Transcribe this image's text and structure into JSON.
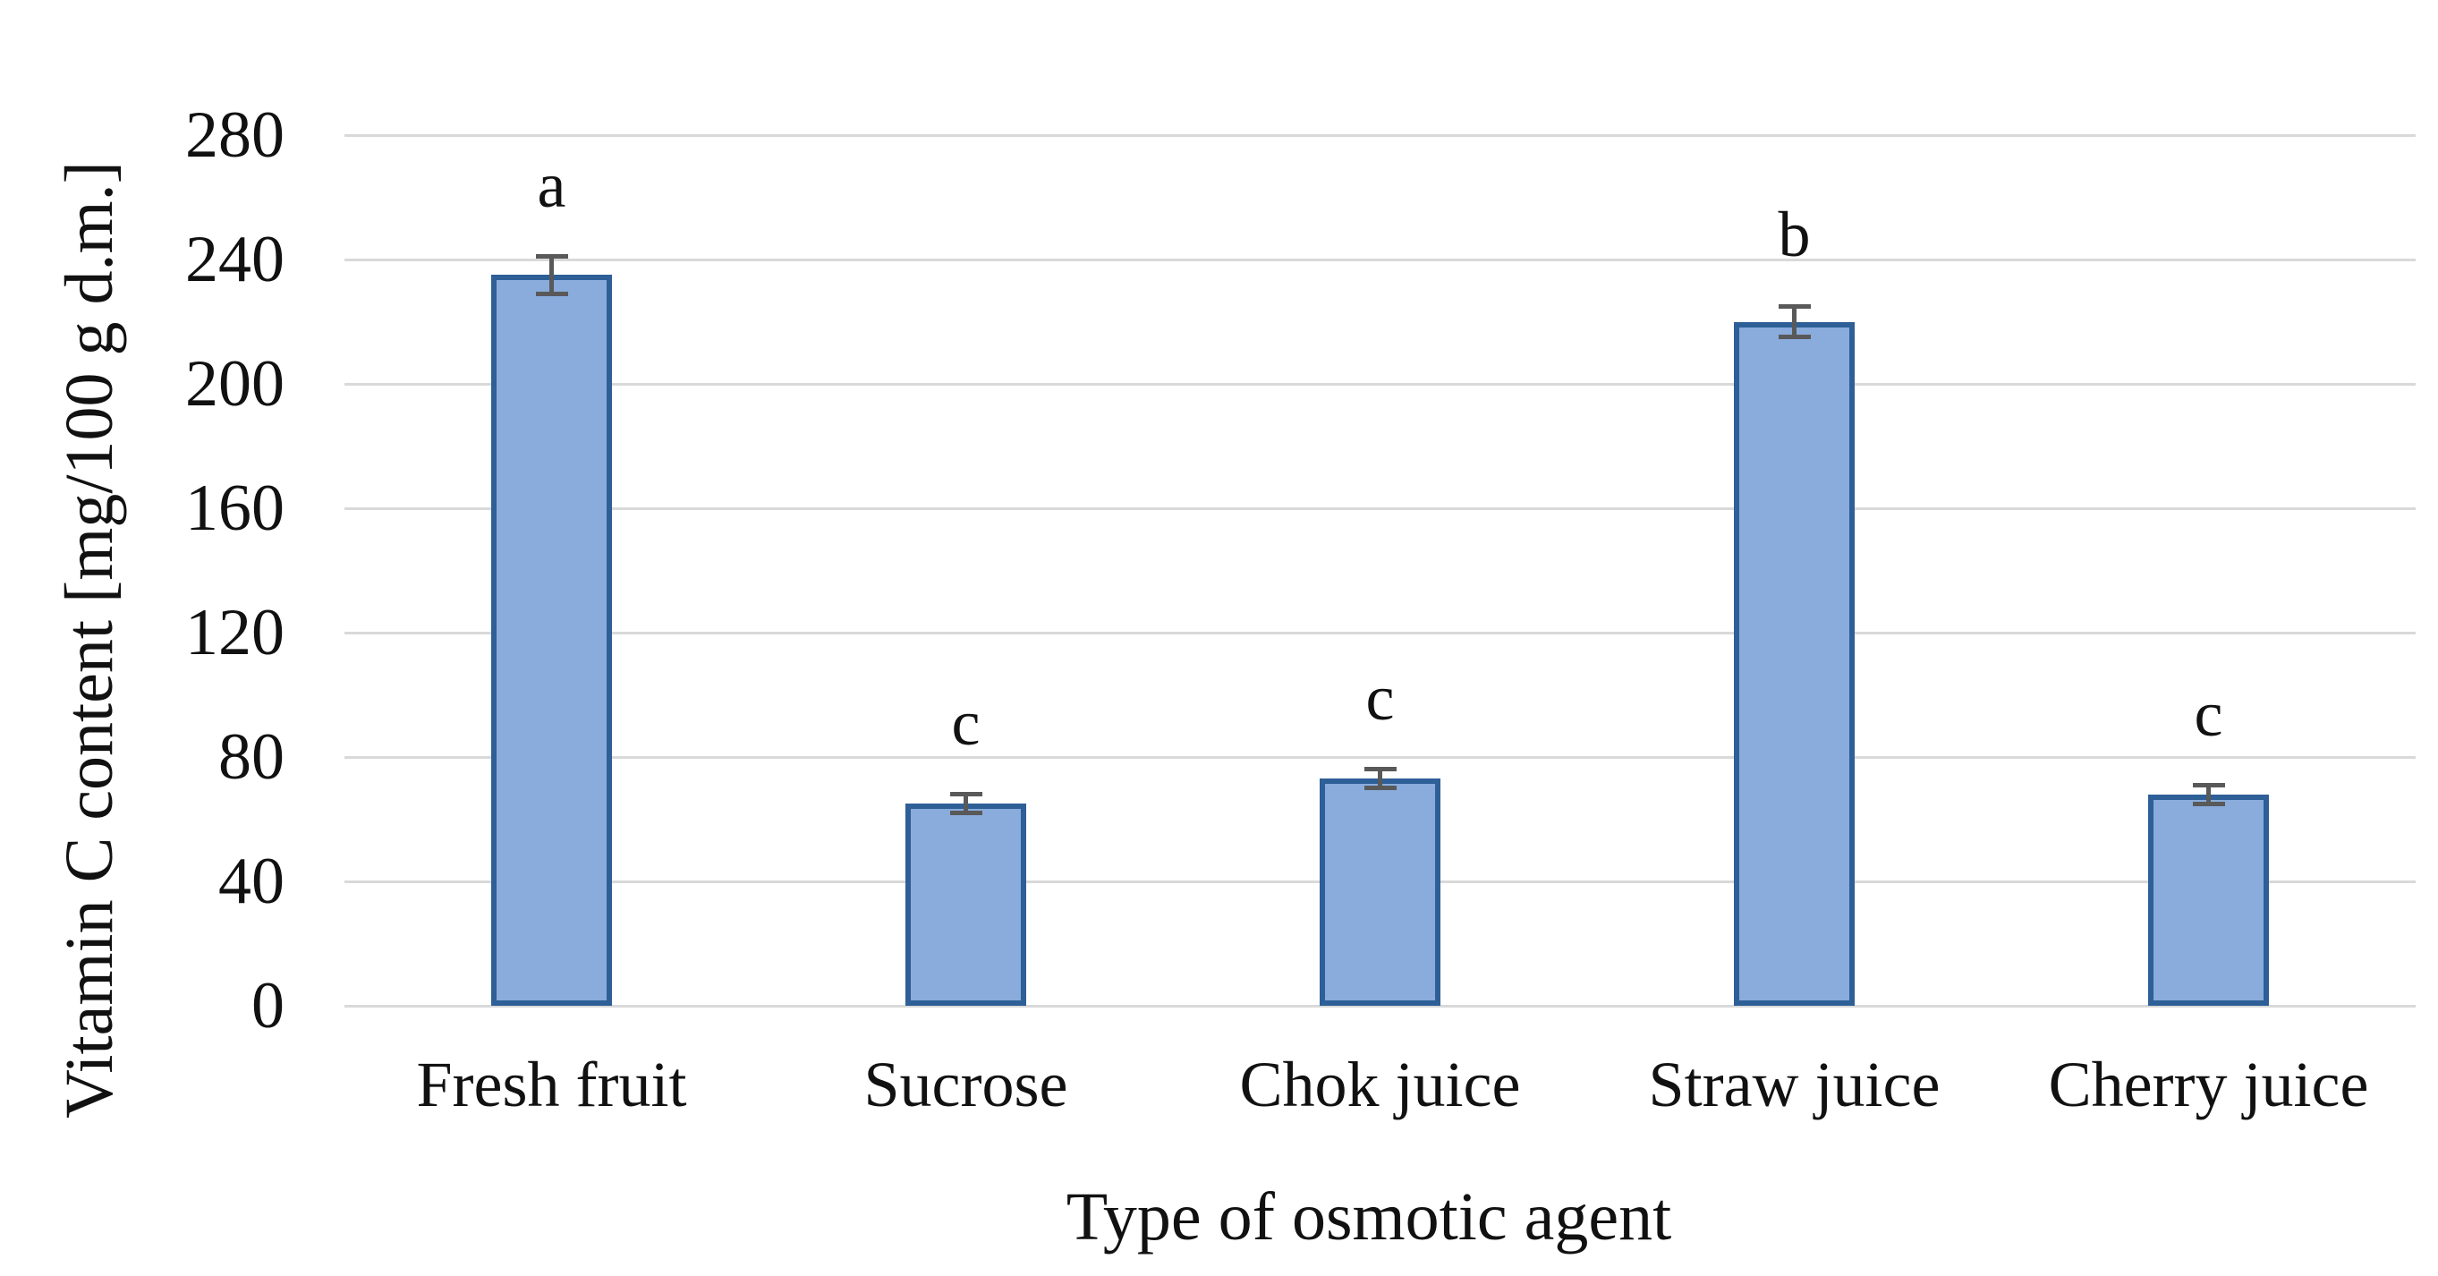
{
  "chart_data": {
    "type": "bar",
    "title": "",
    "xlabel": "Type of osmotic agent",
    "ylabel": "Vitamin C content [mg/100 g d.m.]",
    "categories": [
      "Fresh fruit",
      "Sucrose",
      "Chok juice",
      "Straw juice",
      "Cherry juice"
    ],
    "series": [
      {
        "name": "Vitamin C content",
        "values": [
          235,
          65,
          73,
          220,
          68
        ],
        "errors": [
          6,
          3,
          3,
          5,
          3
        ],
        "sig_letters": [
          "a",
          "c",
          "c",
          "b",
          "c"
        ]
      }
    ],
    "yticks": [
      0,
      40,
      80,
      120,
      160,
      200,
      240,
      280
    ],
    "ylim": [
      0,
      280
    ],
    "grid": true,
    "legend_position": "none",
    "colors": {
      "bar_fill": "#89ACDC",
      "bar_border": "#2E5F97",
      "gridline": "#D9D9D9",
      "error_bar": "#595959",
      "text": "#111111",
      "background": "#FFFFFF"
    }
  }
}
